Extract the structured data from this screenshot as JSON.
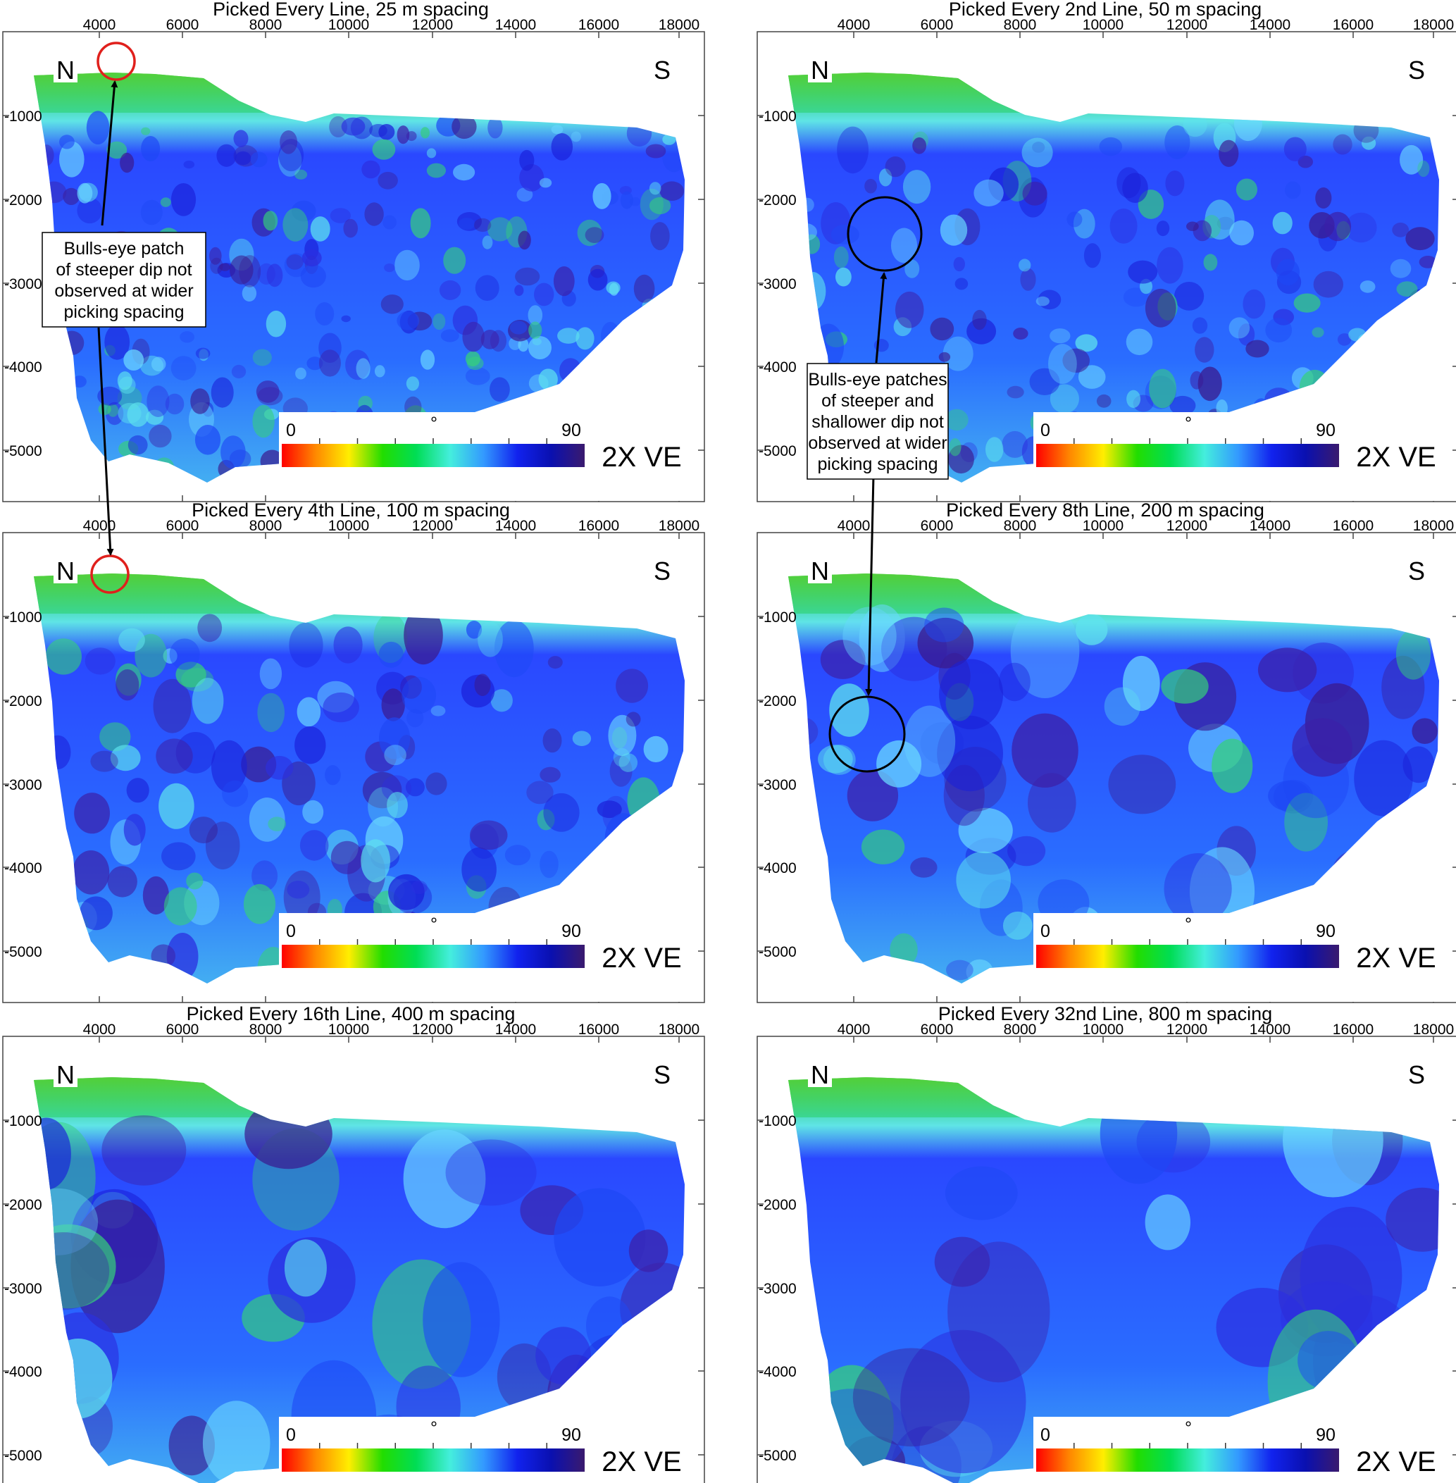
{
  "panels": [
    {
      "title": "Picked Every Line, 25 m spacing"
    },
    {
      "title": "Picked Every 2nd Line, 50 m spacing"
    },
    {
      "title": "Picked Every 4th Line, 100 m spacing"
    },
    {
      "title": "Picked Every 8th Line, 200 m spacing"
    },
    {
      "title": "Picked Every 16th Line, 400 m spacing"
    },
    {
      "title": "Picked Every 32nd Line, 800 m spacing"
    }
  ],
  "axes": {
    "x_ticks": [
      "4000",
      "6000",
      "8000",
      "10000",
      "12000",
      "14000",
      "16000",
      "18000"
    ],
    "y_ticks": [
      "-1000",
      "-2000",
      "-3000",
      "-4000",
      "-5000"
    ]
  },
  "labels": {
    "north": "N",
    "south": "S",
    "vertical_exaggeration": "2X VE"
  },
  "colorbar": {
    "min_label": "0",
    "unit_label": "°",
    "max_label": "90",
    "colors": [
      "#ff0000",
      "#ff8800",
      "#ffee00",
      "#22dd00",
      "#00dd55",
      "#44eedd",
      "#3399ff",
      "#1122ee",
      "#0a10b0",
      "#3a1a6e"
    ]
  },
  "annotations": {
    "note1": [
      "Bulls-eye patch",
      "of steeper dip not",
      "observed at wider",
      "picking spacing"
    ],
    "note2": [
      "Bulls-eye patches",
      "of steeper and",
      "shallower dip not",
      "observed at wider",
      "picking spacing"
    ]
  },
  "colors": {
    "circle_red": "#e0201c",
    "circle_black": "#000000"
  }
}
